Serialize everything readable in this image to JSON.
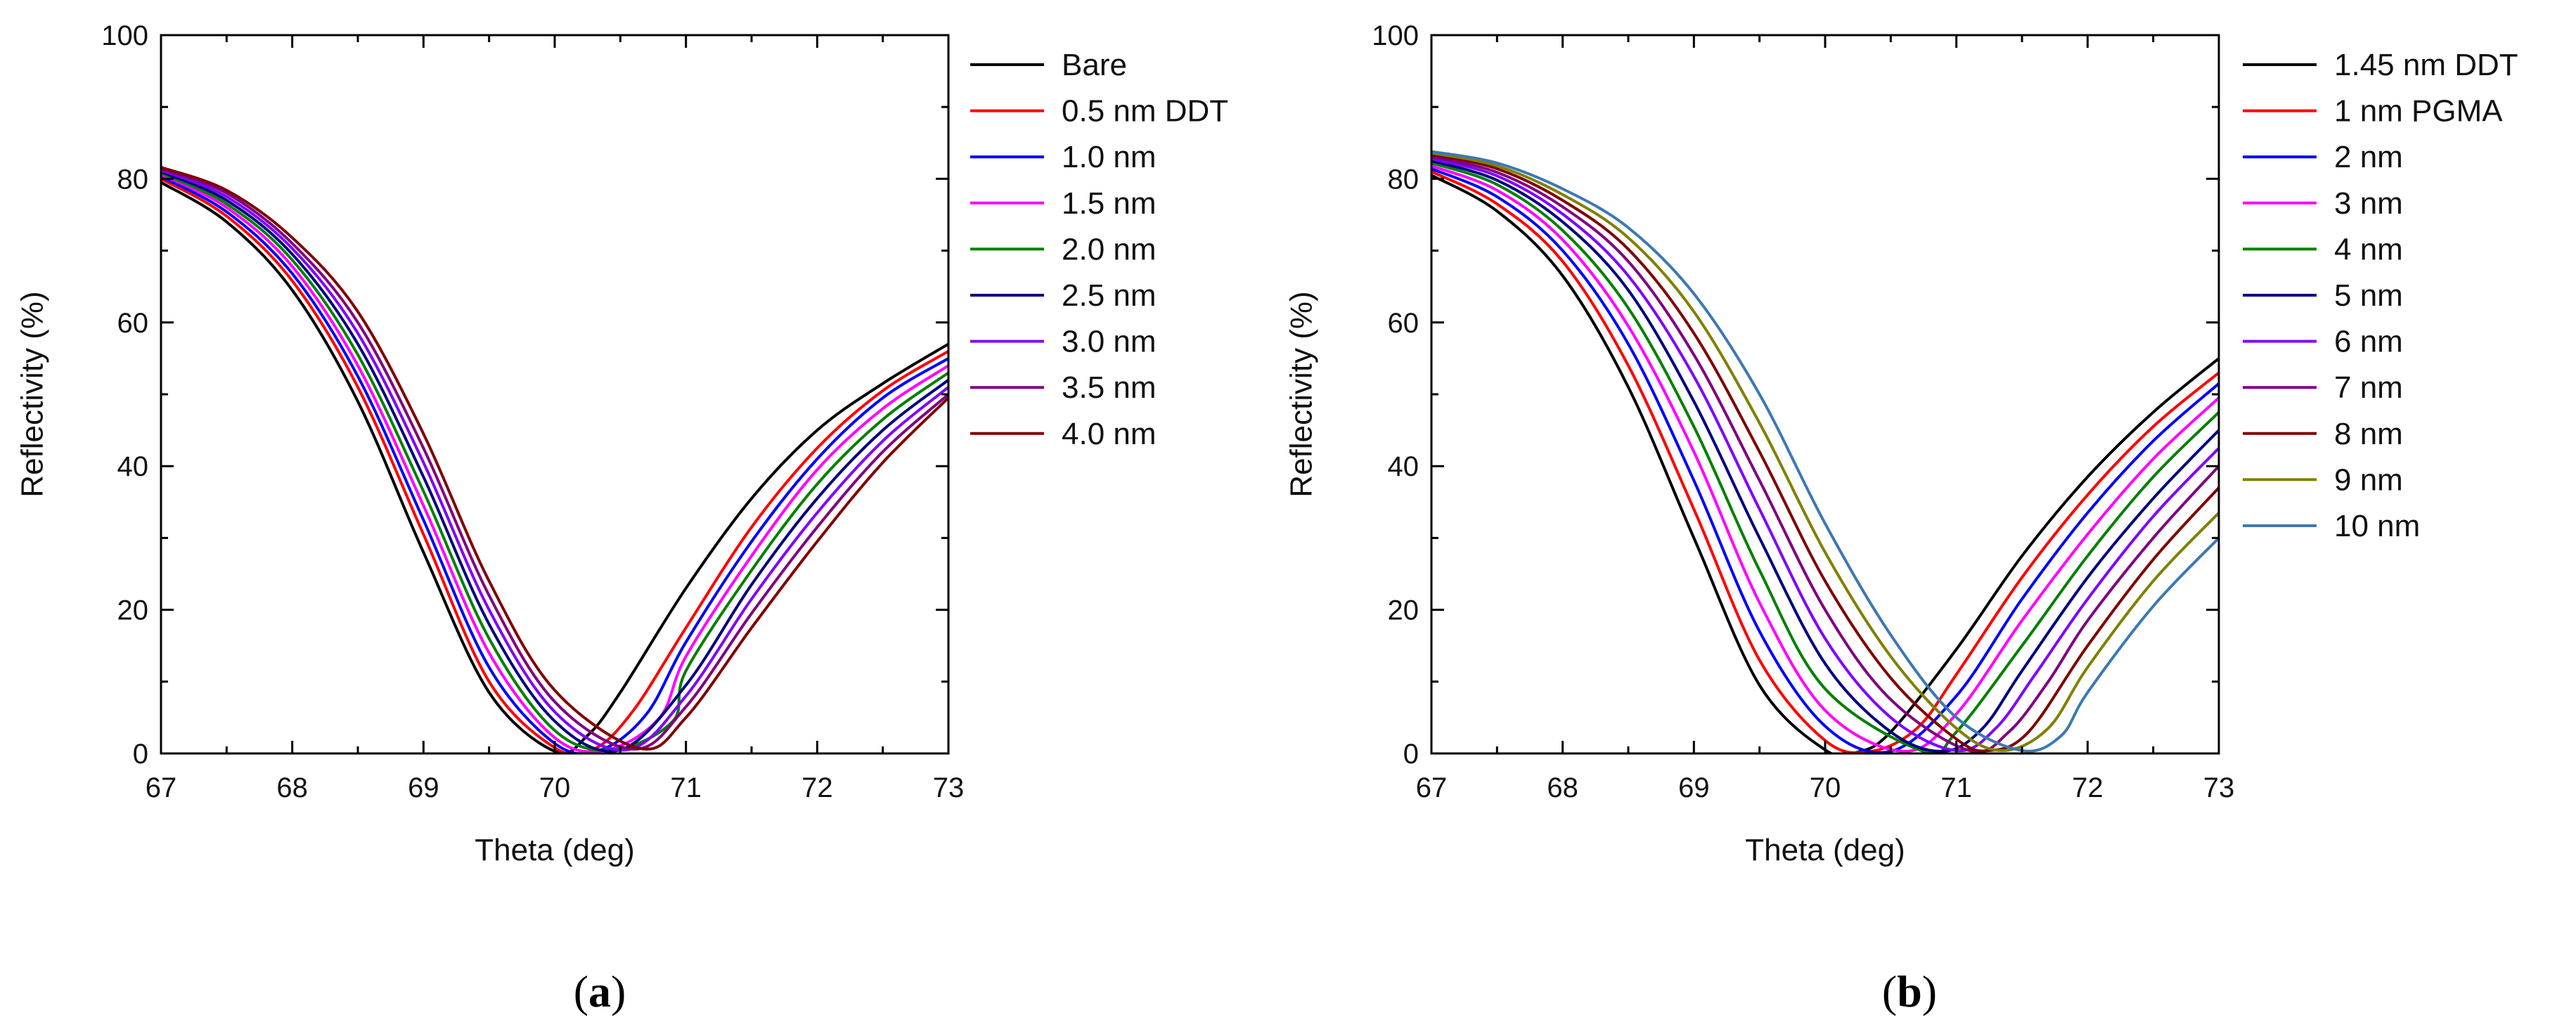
{
  "chart_data": [
    {
      "type": "line",
      "panel_label": {
        "open": "(",
        "letter": "a",
        "close": ")"
      },
      "xlabel": "Theta (deg)",
      "ylabel": "Reflectivity (%)",
      "xlim": [
        67,
        73
      ],
      "ylim": [
        0,
        100
      ],
      "xticks": [
        67,
        68,
        69,
        70,
        71,
        72,
        73
      ],
      "yticks": [
        0,
        20,
        40,
        60,
        80,
        100
      ],
      "grid": false,
      "legend_position": "right-outside",
      "series": [
        {
          "name": "Bare",
          "color": "#000000",
          "x": [
            67,
            67.5,
            68,
            68.5,
            69,
            69.5,
            70,
            70.25,
            70.5,
            71,
            71.5,
            72,
            72.5,
            73
          ],
          "y": [
            79.5,
            74.0,
            64.5,
            49.0,
            28.0,
            8.5,
            0.3,
            2.5,
            8.5,
            23.0,
            35.5,
            45.0,
            51.5,
            57.0
          ]
        },
        {
          "name": "0.5 nm DDT",
          "color": "#ff0000",
          "x": [
            67,
            67.5,
            68,
            68.5,
            69,
            69.5,
            70,
            70.3,
            70.6,
            71,
            71.5,
            72,
            72.5,
            73
          ],
          "y": [
            80.0,
            74.8,
            65.8,
            51.0,
            30.5,
            10.0,
            0.8,
            0.6,
            6.0,
            17.5,
            31.5,
            42.5,
            50.5,
            56.0
          ]
        },
        {
          "name": "1.0 nm",
          "color": "#0000ff",
          "x": [
            67,
            67.5,
            68,
            68.5,
            69,
            69.5,
            70,
            70.35,
            70.7,
            71,
            71.5,
            72,
            72.5,
            73
          ],
          "y": [
            80.3,
            75.4,
            66.8,
            52.5,
            32.5,
            12.0,
            1.4,
            0.5,
            5.5,
            15.5,
            29.5,
            41.0,
            49.5,
            55.0
          ]
        },
        {
          "name": "1.5 nm",
          "color": "#ff00ff",
          "x": [
            67,
            67.5,
            68,
            68.5,
            69,
            69.5,
            70,
            70.4,
            70.8,
            71,
            71.5,
            72,
            72.5,
            73
          ],
          "y": [
            80.6,
            76.0,
            67.8,
            54.0,
            34.5,
            14.0,
            2.2,
            0.5,
            5.0,
            13.5,
            27.5,
            39.5,
            48.0,
            54.0
          ]
        },
        {
          "name": "2.0 nm",
          "color": "#008000",
          "x": [
            67,
            67.5,
            68,
            68.5,
            69,
            69.5,
            70,
            70.45,
            70.9,
            71,
            71.5,
            72,
            72.5,
            73
          ],
          "y": [
            80.8,
            76.5,
            68.7,
            55.5,
            36.5,
            16.0,
            3.2,
            0.5,
            4.5,
            11.5,
            25.5,
            37.5,
            46.5,
            53.0
          ]
        },
        {
          "name": "2.5 nm",
          "color": "#000080",
          "x": [
            67,
            67.5,
            68,
            68.5,
            69,
            69.5,
            70,
            70.5,
            71,
            71.5,
            72,
            72.5,
            73
          ],
          "y": [
            81.0,
            77.0,
            69.5,
            57.0,
            38.5,
            18.0,
            4.5,
            0.5,
            9.5,
            23.5,
            35.5,
            45.0,
            52.0
          ]
        },
        {
          "name": "3.0 nm",
          "color": "#8000ff",
          "x": [
            67,
            67.5,
            68,
            68.5,
            69,
            69.5,
            70,
            70.55,
            71,
            71.5,
            72,
            72.5,
            73
          ],
          "y": [
            81.2,
            77.5,
            70.3,
            58.5,
            40.5,
            20.0,
            5.8,
            0.5,
            8.0,
            21.5,
            33.5,
            43.5,
            51.0
          ]
        },
        {
          "name": "3.5 nm",
          "color": "#800080",
          "x": [
            67,
            67.5,
            68,
            68.5,
            69,
            69.5,
            70,
            70.6,
            71,
            71.5,
            72,
            72.5,
            73
          ],
          "y": [
            81.4,
            78.0,
            71.0,
            60.0,
            42.5,
            22.0,
            7.2,
            0.6,
            6.5,
            19.5,
            31.5,
            42.0,
            50.0
          ]
        },
        {
          "name": "4.0 nm",
          "color": "#800000",
          "x": [
            67,
            67.5,
            68,
            68.5,
            69,
            69.5,
            70,
            70.65,
            71,
            71.5,
            72,
            72.5,
            73
          ],
          "y": [
            81.6,
            78.4,
            71.8,
            61.5,
            44.5,
            24.0,
            8.8,
            0.7,
            5.0,
            17.5,
            29.5,
            40.5,
            49.5
          ]
        }
      ]
    },
    {
      "type": "line",
      "panel_label": {
        "open": "(",
        "letter": "b",
        "close": ")"
      },
      "xlabel": "Theta (deg)",
      "ylabel": "Reflectivity (%)",
      "xlim": [
        67,
        73
      ],
      "ylim": [
        0,
        100
      ],
      "xticks": [
        67,
        68,
        69,
        70,
        71,
        72,
        73
      ],
      "yticks": [
        0,
        20,
        40,
        60,
        80,
        100
      ],
      "grid": false,
      "legend_position": "right-outside",
      "series": [
        {
          "name": "1.45 nm DDT",
          "color": "#000000",
          "x": [
            67,
            67.5,
            68,
            68.5,
            69,
            69.5,
            70,
            70.25,
            70.5,
            71,
            71.5,
            72,
            72.5,
            73
          ],
          "y": [
            80.5,
            75.5,
            66.5,
            51.0,
            30.0,
            9.5,
            0.5,
            0.2,
            3.0,
            14.5,
            27.5,
            38.5,
            47.5,
            55.0
          ]
        },
        {
          "name": "1 nm PGMA",
          "color": "#ff0000",
          "x": [
            67,
            67.5,
            68,
            68.5,
            69,
            69.5,
            70,
            70.35,
            70.7,
            71,
            71.5,
            72,
            72.5,
            73
          ],
          "y": [
            81.0,
            76.5,
            68.5,
            54.0,
            34.0,
            13.0,
            1.8,
            0.3,
            3.5,
            11.0,
            24.5,
            36.0,
            45.5,
            53.0
          ]
        },
        {
          "name": "2 nm",
          "color": "#0000ff",
          "x": [
            67,
            67.5,
            68,
            68.5,
            69,
            69.5,
            70,
            70.5,
            71,
            71.5,
            72,
            72.5,
            73
          ],
          "y": [
            81.4,
            77.5,
            70.0,
            57.0,
            38.0,
            17.0,
            3.8,
            0.3,
            8.0,
            21.5,
            33.5,
            43.5,
            51.5
          ]
        },
        {
          "name": "3 nm",
          "color": "#ff00ff",
          "x": [
            67,
            67.5,
            68,
            68.5,
            69,
            69.5,
            70,
            70.6,
            71,
            71.5,
            72,
            72.5,
            73
          ],
          "y": [
            81.8,
            78.4,
            71.5,
            59.5,
            42.0,
            21.0,
            6.0,
            0.3,
            5.5,
            18.5,
            30.5,
            41.0,
            49.5
          ]
        },
        {
          "name": "4 nm",
          "color": "#008000",
          "x": [
            67,
            67.5,
            68,
            68.5,
            69,
            69.5,
            70,
            70.75,
            71,
            71.5,
            72,
            72.5,
            73
          ],
          "y": [
            82.2,
            79.2,
            72.8,
            62.0,
            45.5,
            25.5,
            9.0,
            0.3,
            3.0,
            15.0,
            27.5,
            38.5,
            47.5
          ]
        },
        {
          "name": "5 nm",
          "color": "#000080",
          "x": [
            67,
            67.5,
            68,
            68.5,
            69,
            69.5,
            70,
            70.5,
            70.9,
            71.2,
            71.5,
            72,
            72.5,
            73
          ],
          "y": [
            82.5,
            79.8,
            74.0,
            64.5,
            49.0,
            30.0,
            12.5,
            3.0,
            0.3,
            3.5,
            11.5,
            24.5,
            35.5,
            45.0
          ]
        },
        {
          "name": "6 nm",
          "color": "#8000ff",
          "x": [
            67,
            67.5,
            68,
            68.5,
            69,
            69.5,
            70,
            70.5,
            71,
            71.3,
            71.6,
            72,
            72.5,
            73
          ],
          "y": [
            82.8,
            80.4,
            75.1,
            66.5,
            52.5,
            34.0,
            16.0,
            5.0,
            0.4,
            3.5,
            11.0,
            21.5,
            33.0,
            42.5
          ]
        },
        {
          "name": "7 nm",
          "color": "#800080",
          "x": [
            67,
            67.5,
            68,
            68.5,
            69,
            69.5,
            70,
            70.5,
            71.1,
            71.4,
            71.7,
            72,
            72.5,
            73
          ],
          "y": [
            83.1,
            80.9,
            76.1,
            68.5,
            55.5,
            38.0,
            20.0,
            7.5,
            0.4,
            3.0,
            10.0,
            18.5,
            30.0,
            40.0
          ]
        },
        {
          "name": "8 nm",
          "color": "#800000",
          "x": [
            67,
            67.5,
            68,
            68.5,
            69,
            69.5,
            70,
            70.5,
            71,
            71.25,
            71.55,
            72,
            72.5,
            73
          ],
          "y": [
            83.4,
            81.4,
            77.0,
            70.2,
            58.5,
            42.0,
            24.0,
            10.5,
            2.0,
            0.4,
            3.0,
            15.0,
            27.0,
            37.0
          ]
        },
        {
          "name": "9 nm",
          "color": "#808000",
          "x": [
            67,
            67.5,
            68,
            68.5,
            69,
            69.5,
            70,
            70.5,
            71,
            71.35,
            71.7,
            72,
            72.5,
            73
          ],
          "y": [
            83.6,
            81.8,
            77.8,
            71.8,
            61.5,
            46.0,
            28.0,
            13.5,
            3.5,
            0.4,
            3.5,
            12.0,
            24.0,
            33.5
          ]
        },
        {
          "name": "10 nm",
          "color": "#3c78b4",
          "x": [
            67,
            67.5,
            68,
            68.5,
            69,
            69.5,
            70,
            70.5,
            71,
            71.5,
            71.8,
            72,
            72.5,
            73
          ],
          "y": [
            83.8,
            82.2,
            78.6,
            73.2,
            64.0,
            50.0,
            32.0,
            16.5,
            5.0,
            0.4,
            2.5,
            8.5,
            20.5,
            30.0
          ]
        }
      ]
    }
  ]
}
